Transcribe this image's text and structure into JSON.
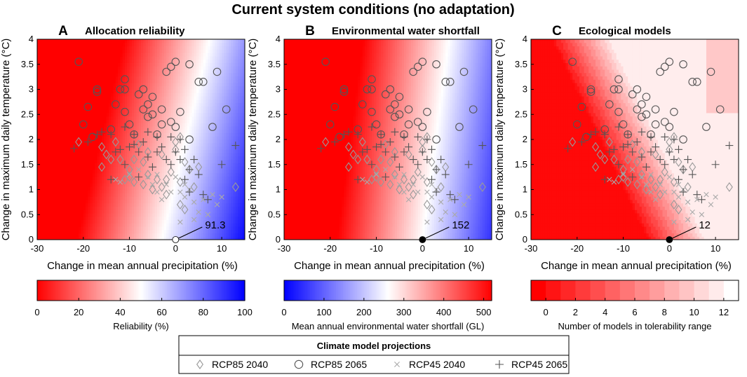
{
  "figure": {
    "title": "Current system conditions (no adaptation)",
    "legend": {
      "title": "Climate model projections",
      "items": [
        {
          "marker": "diamond",
          "label": "RCP85 2040",
          "color": "#999999"
        },
        {
          "marker": "circle",
          "label": "RCP85 2065",
          "color": "#555555"
        },
        {
          "marker": "x",
          "label": "RCP45 2040",
          "color": "#aaaaaa"
        },
        {
          "marker": "plus",
          "label": "RCP45 2065",
          "color": "#555555"
        }
      ]
    }
  },
  "chart_data": [
    {
      "type": "heatmap",
      "letter": "A",
      "title": "Allocation reliability",
      "xlabel": "Change in mean annual precipitation (%)",
      "ylabel": "Change in maximum daily temperature (°C)",
      "xlim": [
        -30,
        15
      ],
      "ylim": [
        0,
        4
      ],
      "xticks": [
        -30,
        -20,
        -10,
        0,
        10
      ],
      "yticks": [
        0,
        0.5,
        1,
        1.5,
        2,
        2.5,
        3,
        3.5,
        4
      ],
      "surface": "continuous",
      "colorbar": {
        "label": "Reliability (%)",
        "min": 0,
        "max": 100,
        "ticks": [
          0,
          20,
          40,
          60,
          80,
          100
        ],
        "colors": [
          "#ff0000",
          "#ffffff",
          "#0000ff"
        ]
      },
      "annotation": {
        "x": 0,
        "y": 0,
        "text": "91.3",
        "dot_color": "#ffffff"
      }
    },
    {
      "type": "heatmap",
      "letter": "B",
      "title": "Environmental water shortfall",
      "xlabel": "Change in mean annual precipitation (%)",
      "ylabel": "Change in maximum daily temperature (°C)",
      "xlim": [
        -30,
        15
      ],
      "ylim": [
        0,
        4
      ],
      "xticks": [
        -30,
        -20,
        -10,
        0,
        10
      ],
      "yticks": [
        0,
        0.5,
        1,
        1.5,
        2,
        2.5,
        3,
        3.5,
        4
      ],
      "surface": "continuous",
      "colorbar": {
        "label": "Mean annual environmental water shortfall (GL)",
        "min": 0,
        "max": 520,
        "ticks": [
          0,
          100,
          200,
          300,
          400,
          500
        ],
        "colors": [
          "#0000ff",
          "#ffffff",
          "#ff0000"
        ]
      },
      "annotation": {
        "x": 0,
        "y": 0,
        "text": "152",
        "dot_color": "#000000"
      }
    },
    {
      "type": "heatmap",
      "letter": "C",
      "title": "Ecological models",
      "xlabel": "Change in mean annual precipitation (%)",
      "ylabel": "Change in maximum daily temperature (°C)",
      "xlim": [
        -30,
        15
      ],
      "ylim": [
        0,
        4
      ],
      "xticks": [
        -30,
        -20,
        -10,
        0,
        10
      ],
      "yticks": [
        0,
        0.5,
        1,
        1.5,
        2,
        2.5,
        3,
        3.5,
        4
      ],
      "surface": "discrete",
      "colorbar": {
        "label": "Number of models in tolerability range",
        "min": -1,
        "max": 13,
        "ticks": [
          0,
          2,
          4,
          6,
          8,
          10,
          12
        ],
        "colors": [
          "#ff0000",
          "#ffffff"
        ]
      },
      "annotation": {
        "x": 0,
        "y": 0,
        "text": "12",
        "dot_color": "#000000"
      }
    }
  ],
  "projections": {
    "RCP85_2040": [
      [
        -21,
        1.95
      ],
      [
        -16,
        1.45
      ],
      [
        -16,
        1.85
      ],
      [
        -14,
        1.6
      ],
      [
        -13,
        1.95
      ],
      [
        -11,
        1.2
      ],
      [
        -10,
        1.4
      ],
      [
        -9,
        1.15
      ],
      [
        -8,
        1.9
      ],
      [
        -7,
        1.55
      ],
      [
        -6,
        1.3
      ],
      [
        -5,
        1.0
      ],
      [
        -4,
        1.2
      ],
      [
        -3,
        1.7
      ],
      [
        -2,
        0.9
      ],
      [
        -1,
        1.35
      ],
      [
        0,
        1.8
      ],
      [
        1,
        1.15
      ],
      [
        1,
        2.05
      ],
      [
        2,
        1.55
      ],
      [
        -2,
        1.2
      ],
      [
        -6,
        1.75
      ],
      [
        -9,
        1.6
      ],
      [
        -15,
        1.7
      ],
      [
        3,
        1.4
      ],
      [
        4,
        1.05
      ],
      [
        -10,
        1.25
      ],
      [
        2,
        0.6
      ],
      [
        1,
        0.7
      ],
      [
        13,
        1.05
      ],
      [
        5,
        1.45
      ],
      [
        -3,
        1.05
      ],
      [
        0,
        1.95
      ],
      [
        -12,
        1.6
      ],
      [
        -7,
        1.1
      ]
    ],
    "RCP85_2065": [
      [
        -21,
        3.55
      ],
      [
        -19,
        2.65
      ],
      [
        -20,
        2.3
      ],
      [
        -17,
        3.0
      ],
      [
        -17,
        2.95
      ],
      [
        -18,
        2.05
      ],
      [
        -13,
        2.7
      ],
      [
        -12,
        3.0
      ],
      [
        -11,
        3.0
      ],
      [
        -11,
        3.2
      ],
      [
        -11,
        2.55
      ],
      [
        -10,
        2.3
      ],
      [
        -9,
        2.1
      ],
      [
        -8,
        2.9
      ],
      [
        -7,
        3.0
      ],
      [
        -7,
        2.6
      ],
      [
        -6,
        2.7
      ],
      [
        -6,
        2.45
      ],
      [
        -5,
        2.85
      ],
      [
        -5,
        2.5
      ],
      [
        -4,
        2.1
      ],
      [
        -3,
        2.3
      ],
      [
        -2,
        3.35
      ],
      [
        -1,
        3.45
      ],
      [
        0,
        3.55
      ],
      [
        -1,
        2.35
      ],
      [
        0,
        2.25
      ],
      [
        1,
        2.55
      ],
      [
        3,
        3.5
      ],
      [
        3,
        2.0
      ],
      [
        5,
        3.15
      ],
      [
        6,
        3.15
      ],
      [
        8,
        2.25
      ],
      [
        9,
        3.35
      ],
      [
        11,
        2.6
      ],
      [
        -14,
        2.2
      ],
      [
        -3,
        2.6
      ]
    ],
    "RCP45_2040": [
      [
        -13,
        1.2
      ],
      [
        -12,
        1.15
      ],
      [
        -10,
        1.3
      ],
      [
        -8,
        1.4
      ],
      [
        -6,
        1.25
      ],
      [
        -5,
        1.1
      ],
      [
        -4,
        0.95
      ],
      [
        -3,
        0.8
      ],
      [
        -2,
        1.1
      ],
      [
        0,
        1.25
      ],
      [
        1,
        0.95
      ],
      [
        2,
        0.85
      ],
      [
        3,
        1.0
      ],
      [
        4,
        0.75
      ],
      [
        5,
        0.55
      ],
      [
        6,
        0.8
      ],
      [
        8,
        0.9
      ],
      [
        9,
        0.7
      ],
      [
        10,
        0.85
      ],
      [
        2,
        1.1
      ],
      [
        -1,
        0.95
      ],
      [
        7,
        0.5
      ],
      [
        4,
        0.4
      ],
      [
        1,
        0.35
      ],
      [
        -4,
        1.3
      ]
    ],
    "RCP45_2065": [
      [
        -22,
        1.82
      ],
      [
        -19,
        1.95
      ],
      [
        -17,
        2.1
      ],
      [
        -16,
        2.15
      ],
      [
        -14,
        2.1
      ],
      [
        -13,
        1.75
      ],
      [
        -12,
        1.8
      ],
      [
        -11,
        1.5
      ],
      [
        -11,
        2.25
      ],
      [
        -10,
        1.85
      ],
      [
        -9,
        1.9
      ],
      [
        -9,
        2.1
      ],
      [
        -8,
        1.75
      ],
      [
        -7,
        1.95
      ],
      [
        -6,
        1.65
      ],
      [
        -6,
        2.15
      ],
      [
        -5,
        1.45
      ],
      [
        -4,
        2.05
      ],
      [
        -4,
        1.75
      ],
      [
        -3,
        1.85
      ],
      [
        -2,
        1.6
      ],
      [
        -1,
        2.05
      ],
      [
        -1,
        1.5
      ],
      [
        0,
        1.75
      ],
      [
        1,
        1.6
      ],
      [
        1,
        2.0
      ],
      [
        2,
        1.8
      ],
      [
        2,
        1.2
      ],
      [
        3,
        1.4
      ],
      [
        3,
        0.95
      ],
      [
        4,
        1.6
      ],
      [
        5,
        1.3
      ],
      [
        6,
        0.9
      ],
      [
        7,
        0.8
      ],
      [
        10,
        1.5
      ],
      [
        13,
        1.88
      ],
      [
        -14,
        1.2
      ],
      [
        -8,
        1.25
      ]
    ]
  }
}
